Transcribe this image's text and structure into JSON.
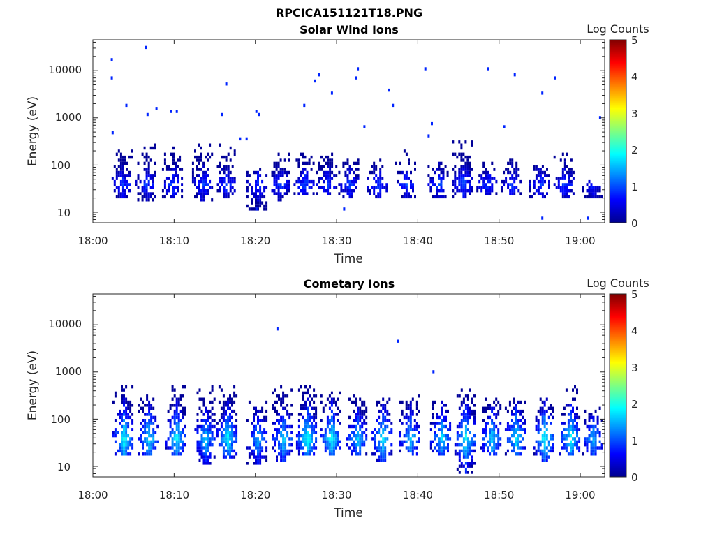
{
  "figure_title": "RPCICA151121T18.PNG",
  "colormap": [
    "#00008f",
    "#0000ff",
    "#0080ff",
    "#00ffff",
    "#80ff80",
    "#ffff00",
    "#ff8000",
    "#ff0000",
    "#800000"
  ],
  "chart_data": [
    {
      "type": "heatmap",
      "title": "Solar Wind Ions",
      "xlabel": "Time",
      "ylabel": "Energy (eV)",
      "yscale": "log",
      "xlim": [
        "18:00",
        "19:03"
      ],
      "ylim": [
        6,
        45000
      ],
      "x_ticks": [
        "18:00",
        "18:10",
        "18:20",
        "18:30",
        "18:40",
        "18:50",
        "19:00"
      ],
      "y_ticks": [
        "10",
        "100",
        "1000",
        "10000"
      ],
      "colorbar": {
        "label": "Log Counts",
        "range": [
          0,
          5
        ],
        "ticks": [
          "0",
          "1",
          "2",
          "3",
          "4",
          "5"
        ]
      },
      "grid": false,
      "bursts": [
        {
          "t": "18:03.6",
          "tail_min": 20,
          "core_max": 150,
          "top": 220,
          "peak": 0.9
        },
        {
          "t": "18:06.5",
          "tail_min": 18,
          "core_max": 150,
          "top": 270,
          "peak": 0.9
        },
        {
          "t": "18:09.8",
          "tail_min": 22,
          "core_max": 170,
          "top": 230,
          "peak": 0.9
        },
        {
          "t": "18:13.5",
          "tail_min": 17,
          "core_max": 140,
          "top": 270,
          "peak": 0.9
        },
        {
          "t": "18:16.3",
          "tail_min": 22,
          "core_max": 140,
          "top": 270,
          "peak": 0.9
        },
        {
          "t": "18:20.2",
          "tail_min": 12,
          "core_max": 70,
          "top": 80,
          "peak": 0.9
        },
        {
          "t": "18:23.0",
          "tail_min": 18,
          "core_max": 110,
          "top": 180,
          "peak": 0.9
        },
        {
          "t": "18:26.0",
          "tail_min": 25,
          "core_max": 150,
          "top": 200,
          "peak": 1.0
        },
        {
          "t": "18:28.8",
          "tail_min": 24,
          "core_max": 140,
          "top": 180,
          "peak": 0.9
        },
        {
          "t": "18:31.5",
          "tail_min": 20,
          "core_max": 120,
          "top": 130,
          "peak": 0.9
        },
        {
          "t": "18:35.0",
          "tail_min": 22,
          "core_max": 110,
          "top": 130,
          "peak": 0.9
        },
        {
          "t": "18:38.5",
          "tail_min": 20,
          "core_max": 70,
          "top": 200,
          "peak": 0.9
        },
        {
          "t": "18:42.5",
          "tail_min": 20,
          "core_max": 110,
          "top": 130,
          "peak": 0.9
        },
        {
          "t": "18:45.5",
          "tail_min": 22,
          "core_max": 170,
          "top": 320,
          "peak": 1.0
        },
        {
          "t": "18:48.5",
          "tail_min": 25,
          "core_max": 100,
          "top": 110,
          "peak": 0.9
        },
        {
          "t": "18:51.5",
          "tail_min": 25,
          "core_max": 120,
          "top": 130,
          "peak": 0.9
        },
        {
          "t": "18:55.0",
          "tail_min": 20,
          "core_max": 90,
          "top": 100,
          "peak": 0.9
        },
        {
          "t": "18:58.0",
          "tail_min": 22,
          "core_max": 100,
          "top": 160,
          "peak": 0.9
        },
        {
          "t": "19:01.5",
          "tail_min": 22,
          "core_max": 40,
          "top": 45,
          "peak": 0.8
        }
      ],
      "scatter": [
        {
          "t": "18:02.2",
          "E": 18000,
          "c": 0.8
        },
        {
          "t": "18:02.2",
          "E": 7000,
          "c": 0.8
        },
        {
          "t": "18:02.3",
          "E": 450,
          "c": 0.8
        },
        {
          "t": "18:04.0",
          "E": 1800,
          "c": 0.8
        },
        {
          "t": "18:06.4",
          "E": 29000,
          "c": 0.8
        },
        {
          "t": "18:06.6",
          "E": 1200,
          "c": 0.8
        },
        {
          "t": "18:07.7",
          "E": 1700,
          "c": 0.8
        },
        {
          "t": "18:09.5",
          "E": 1450,
          "c": 0.8
        },
        {
          "t": "18:10.2",
          "E": 1350,
          "c": 0.8
        },
        {
          "t": "18:15.8",
          "E": 1250,
          "c": 0.8
        },
        {
          "t": "18:16.3",
          "E": 5200,
          "c": 0.8
        },
        {
          "t": "18:18.8",
          "E": 340,
          "c": 0.8
        },
        {
          "t": "18:20.0",
          "E": 1450,
          "c": 0.8
        },
        {
          "t": "18:20.3",
          "E": 1150,
          "c": 0.8
        },
        {
          "t": "18:25.9",
          "E": 1800,
          "c": 0.8
        },
        {
          "t": "18:27.2",
          "E": 6000,
          "c": 0.8
        },
        {
          "t": "18:27.7",
          "E": 8500,
          "c": 0.8
        },
        {
          "t": "18:29.3",
          "E": 3300,
          "c": 0.8
        },
        {
          "t": "18:32.5",
          "E": 10500,
          "c": 0.8
        },
        {
          "t": "18:32.3",
          "E": 7000,
          "c": 0.8
        },
        {
          "t": "18:33.3",
          "E": 640,
          "c": 0.8
        },
        {
          "t": "18:36.3",
          "E": 4100,
          "c": 0.8
        },
        {
          "t": "18:36.8",
          "E": 1800,
          "c": 0.8
        },
        {
          "t": "18:40.8",
          "E": 10500,
          "c": 0.8
        },
        {
          "t": "18:41.6",
          "E": 800,
          "c": 0.8
        },
        {
          "t": "18:41.2",
          "E": 420,
          "c": 0.8
        },
        {
          "t": "18:48.5",
          "E": 10500,
          "c": 0.8
        },
        {
          "t": "18:50.5",
          "E": 680,
          "c": 0.8
        },
        {
          "t": "18:51.8",
          "E": 8500,
          "c": 0.8
        },
        {
          "t": "18:55.2",
          "E": 3300,
          "c": 0.8
        },
        {
          "t": "18:56.8",
          "E": 7200,
          "c": 0.8
        },
        {
          "t": "19:02.3",
          "E": 980,
          "c": 0.8
        },
        {
          "t": "18:18.0",
          "E": 340,
          "c": 0.8
        },
        {
          "t": "18:30.8",
          "E": 12,
          "c": 0.8
        },
        {
          "t": "18:55.2",
          "E": 8,
          "c": 0.8
        },
        {
          "t": "19:00.8",
          "E": 8,
          "c": 0.8
        },
        {
          "t": "18:20.0",
          "E": 11,
          "c": 0.8
        }
      ]
    },
    {
      "type": "heatmap",
      "title": "Cometary Ions",
      "xlabel": "Time",
      "ylabel": "Energy (eV)",
      "yscale": "log",
      "xlim": [
        "18:00",
        "19:03"
      ],
      "ylim": [
        6,
        45000
      ],
      "x_ticks": [
        "18:00",
        "18:10",
        "18:20",
        "18:30",
        "18:40",
        "18:50",
        "19:00"
      ],
      "y_ticks": [
        "10",
        "100",
        "1000",
        "10000"
      ],
      "colorbar": {
        "label": "Log Counts",
        "range": [
          0,
          5
        ],
        "ticks": [
          "0",
          "1",
          "2",
          "3",
          "4",
          "5"
        ]
      },
      "grid": false,
      "bursts": [
        {
          "t": "18:03.7",
          "tail_min": 17,
          "core_max": 300,
          "top": 500,
          "peak": 1.9
        },
        {
          "t": "18:06.8",
          "tail_min": 17,
          "core_max": 250,
          "top": 330,
          "peak": 1.8
        },
        {
          "t": "18:10.2",
          "tail_min": 17,
          "core_max": 300,
          "top": 450,
          "peak": 1.8
        },
        {
          "t": "18:13.8",
          "tail_min": 12,
          "core_max": 280,
          "top": 480,
          "peak": 1.6
        },
        {
          "t": "18:16.5",
          "tail_min": 15,
          "core_max": 300,
          "top": 480,
          "peak": 1.8
        },
        {
          "t": "18:20.2",
          "tail_min": 11,
          "core_max": 180,
          "top": 250,
          "peak": 1.5
        },
        {
          "t": "18:23.3",
          "tail_min": 14,
          "core_max": 300,
          "top": 450,
          "peak": 1.7
        },
        {
          "t": "18:26.3",
          "tail_min": 17,
          "core_max": 320,
          "top": 450,
          "peak": 1.9
        },
        {
          "t": "18:29.3",
          "tail_min": 17,
          "core_max": 280,
          "top": 350,
          "peak": 1.9
        },
        {
          "t": "18:32.5",
          "tail_min": 17,
          "core_max": 260,
          "top": 300,
          "peak": 1.6
        },
        {
          "t": "18:35.6",
          "tail_min": 14,
          "core_max": 220,
          "top": 300,
          "peak": 1.8
        },
        {
          "t": "18:39.0",
          "tail_min": 17,
          "core_max": 220,
          "top": 300,
          "peak": 1.6
        },
        {
          "t": "18:42.8",
          "tail_min": 17,
          "core_max": 200,
          "top": 250,
          "peak": 1.7
        },
        {
          "t": "18:45.8",
          "tail_min": 8,
          "core_max": 250,
          "top": 420,
          "peak": 1.9
        },
        {
          "t": "18:49.0",
          "tail_min": 17,
          "core_max": 200,
          "top": 270,
          "peak": 1.7
        },
        {
          "t": "18:52.0",
          "tail_min": 17,
          "core_max": 230,
          "top": 300,
          "peak": 1.8
        },
        {
          "t": "18:55.5",
          "tail_min": 14,
          "core_max": 200,
          "top": 280,
          "peak": 1.9
        },
        {
          "t": "18:58.7",
          "tail_min": 17,
          "core_max": 220,
          "top": 500,
          "peak": 1.9
        },
        {
          "t": "19:01.5",
          "tail_min": 17,
          "core_max": 150,
          "top": 180,
          "peak": 1.5
        }
      ],
      "scatter": [
        {
          "t": "18:22.6",
          "E": 7800,
          "c": 0.8
        },
        {
          "t": "18:37.4",
          "E": 4300,
          "c": 0.8
        },
        {
          "t": "18:41.8",
          "E": 1000,
          "c": 0.8
        }
      ]
    }
  ]
}
